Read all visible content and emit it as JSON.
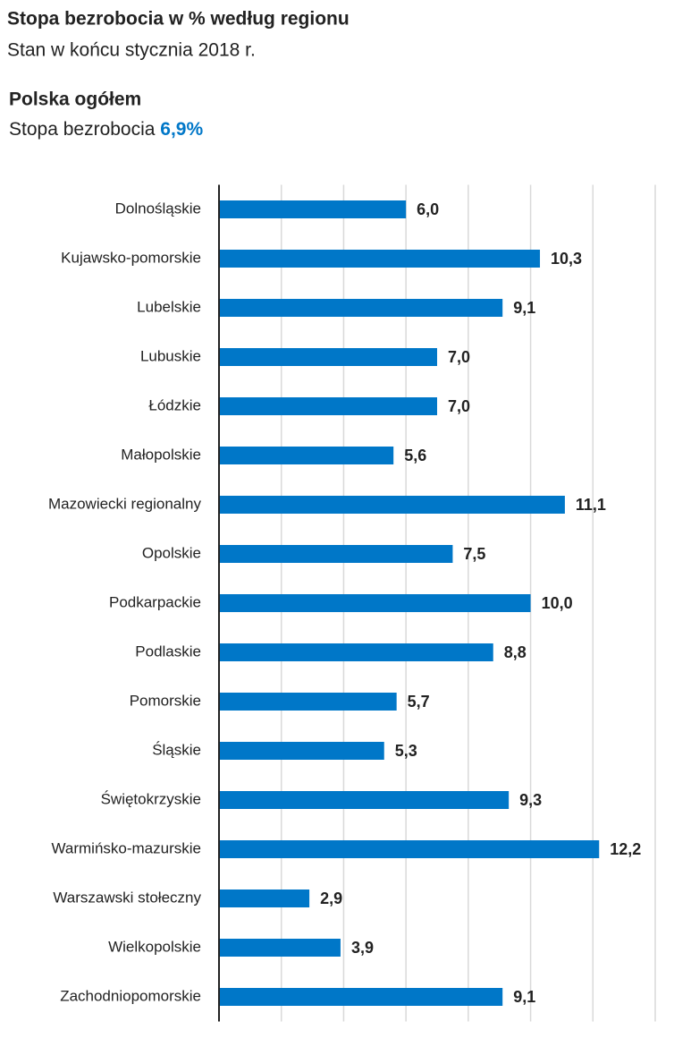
{
  "chart_data": {
    "type": "barh",
    "title": "Stopa bezrobocia  w % według regionu",
    "subtitle": "Stan w końcu stycznia 2018 r.",
    "summary": {
      "title": "Polska ogółem",
      "text": "Stopa bezrobocia",
      "value_label": "6,9%"
    },
    "categories": [
      "Dolnośląskie",
      "Kujawsko-pomorskie",
      "Lubelskie",
      "Lubuskie",
      "Łódzkie",
      "Małopolskie",
      "Mazowiecki regionalny",
      "Opolskie",
      "Podkarpackie",
      "Podlaskie",
      "Pomorskie",
      "Śląskie",
      "Świętokrzyskie",
      "Warmińsko-mazurskie",
      "Warszawski stołeczny",
      "Wielkopolskie",
      "Zachodniopomorskie"
    ],
    "values": [
      6.0,
      10.3,
      9.1,
      7.0,
      7.0,
      5.6,
      11.1,
      7.5,
      10.0,
      8.8,
      5.7,
      5.3,
      9.3,
      12.2,
      2.9,
      3.9,
      9.1
    ],
    "value_labels": [
      "6,0",
      "10,3",
      "9,1",
      "7,0",
      "7,0",
      "5,6",
      "11,1",
      "7,5",
      "10,0",
      "8,8",
      "5,7",
      "5,3",
      "9,3",
      "12,2",
      "2,9",
      "3,9",
      "9,1"
    ],
    "color": "#0077c8",
    "xlim": [
      0,
      14
    ],
    "xticks": [
      0,
      2,
      4,
      6,
      8,
      10,
      12,
      14
    ],
    "grid": true
  }
}
